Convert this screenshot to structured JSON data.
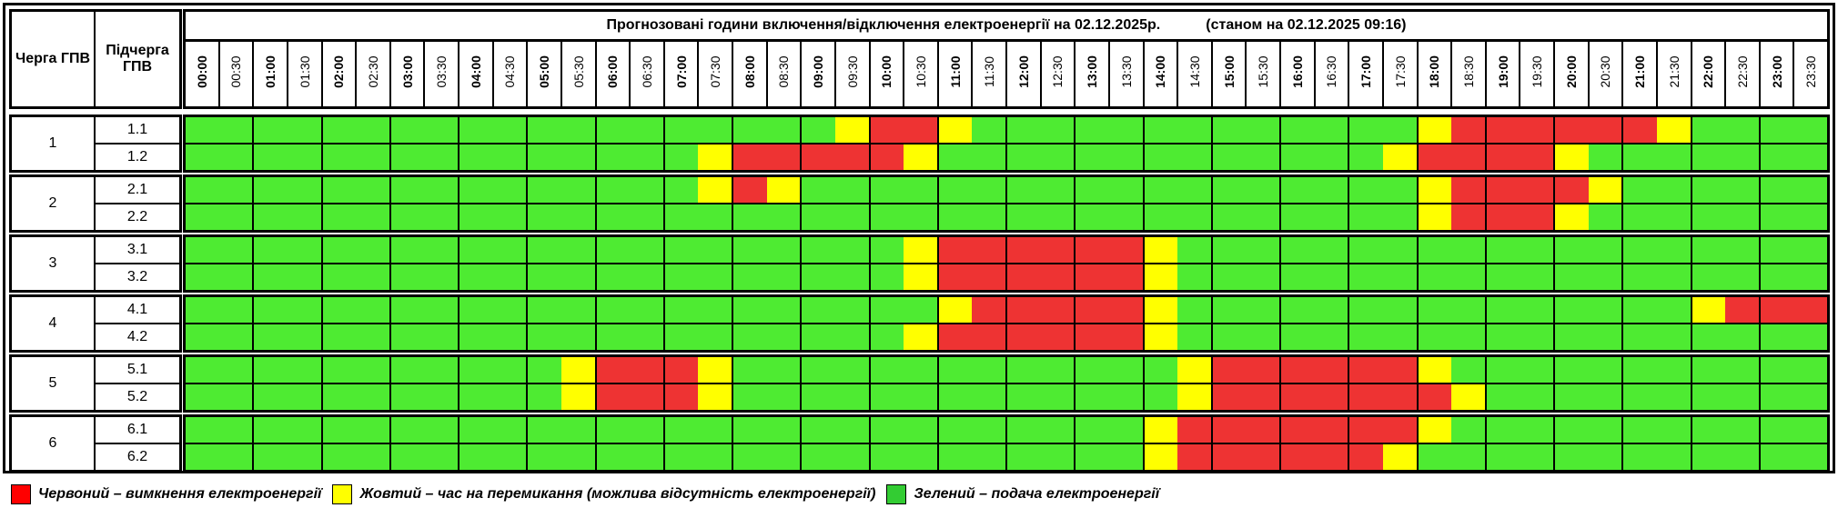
{
  "header": {
    "queue_label": "Черга ГПВ",
    "subqueue_label": "Підчерга ГПВ",
    "title": "Прогнозовані години включення/відключення електроенергії на 02.12.2025р.",
    "status": "(станом на 02.12.2025 09:16)"
  },
  "times": [
    "00:00",
    "00:30",
    "01:00",
    "01:30",
    "02:00",
    "02:30",
    "03:00",
    "03:30",
    "04:00",
    "04:30",
    "05:00",
    "05:30",
    "06:00",
    "06:30",
    "07:00",
    "07:30",
    "08:00",
    "08:30",
    "09:00",
    "09:30",
    "10:00",
    "10:30",
    "11:00",
    "11:30",
    "12:00",
    "12:30",
    "13:00",
    "13:30",
    "14:00",
    "14:30",
    "15:00",
    "15:30",
    "16:00",
    "16:30",
    "17:00",
    "17:30",
    "18:00",
    "18:30",
    "19:00",
    "19:30",
    "20:00",
    "20:30",
    "21:00",
    "21:30",
    "22:00",
    "22:30",
    "23:00",
    "23:30"
  ],
  "status_key": {
    "g": "on",
    "y": "switching",
    "r": "off"
  },
  "colors": {
    "green": "#4EEB32",
    "yellow": "#FFFF00",
    "red": "#EE3333"
  },
  "groups": [
    {
      "queue": "1",
      "subs": [
        {
          "name": "1.1",
          "slots": "gggggggggggggggggggyrrygggggggggggggyrrrrrrygggg"
        },
        {
          "name": "1.2",
          "slots": "gggggggggggggggyrrrrrygggggggggggggyrrrryggggggg"
        }
      ]
    },
    {
      "queue": "2",
      "subs": [
        {
          "name": "2.1",
          "slots": "gggggggggggggggyryggggggggggggggggggyrrrryggggggg"
        },
        {
          "name": "2.2",
          "slots": "ggggggggggggggggggggggggggggggggggggyrrryggggggg"
        }
      ]
    },
    {
      "queue": "3",
      "subs": [
        {
          "name": "3.1",
          "slots": "gggggggggggggggggggggyrrrrrrygggggggggggggggggggg"
        },
        {
          "name": "3.2",
          "slots": "gggggggggggggggggggggyrrrrrrygggggggggggggggggggg"
        }
      ]
    },
    {
      "queue": "4",
      "subs": [
        {
          "name": "4.1",
          "slots": "ggggggggggggggggggggggyrrrrrygggggggggggggggyrrrr"
        },
        {
          "name": "4.2",
          "slots": "gggggggggggggggggggggyrrrrrrygggggggggggggggggggg"
        }
      ]
    },
    {
      "queue": "5",
      "subs": [
        {
          "name": "5.1",
          "slots": "gggggggggggyrrrygggggggggggggyrrrrrrygggggggggggg"
        },
        {
          "name": "5.2",
          "slots": "gggggggggggyrrrygggggggggggggyrrrrrrryggggggggggg"
        }
      ]
    },
    {
      "queue": "6",
      "subs": [
        {
          "name": "6.1",
          "slots": "ggggggggggggggggggggggggggggyrrrrrrryggggggggggg"
        },
        {
          "name": "6.2",
          "slots": "ggggggggggggggggggggggggggggyrrrrrryggggggggggggg"
        }
      ]
    }
  ],
  "legend": {
    "red": "Червоний – вимкнення електроенергії",
    "yellow": "Жовтий – час на перемикання (можлива відсутність електроенергії)",
    "green": "Зелений – подача електроенергії"
  }
}
